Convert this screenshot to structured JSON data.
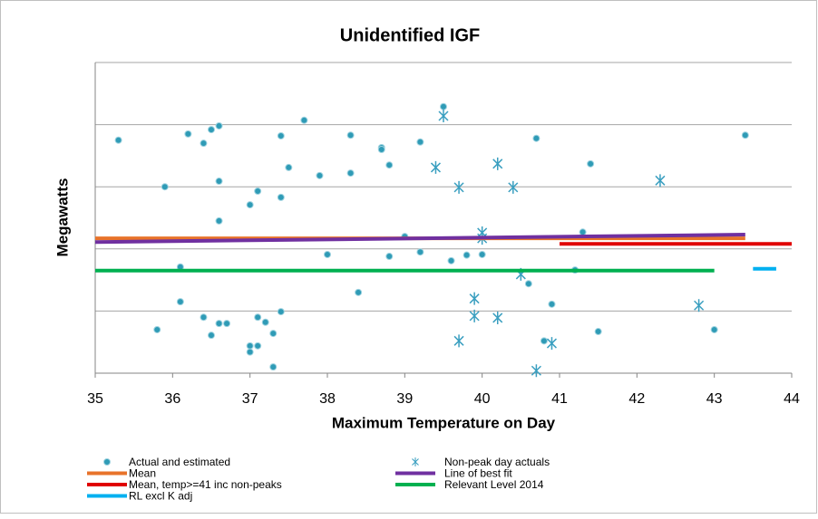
{
  "chart_data": {
    "type": "scatter",
    "title": "Unidentified IGF",
    "x_label": "Maximum Temperature on Day",
    "y_label": "Megawatts",
    "xlim": [
      35,
      44
    ],
    "xticks": [
      35,
      36,
      37,
      38,
      39,
      40,
      41,
      42,
      43,
      44
    ],
    "ylim": [
      0,
      5
    ],
    "yticks": [
      0,
      1,
      2,
      3,
      4,
      5
    ],
    "grid": true,
    "series": [
      {
        "name": "Actual and estimated",
        "type": "scatter",
        "marker": "dot",
        "color": "#2f9bb6",
        "x": [
          35.3,
          35.8,
          35.9,
          36.1,
          36.1,
          36.2,
          36.4,
          36.4,
          36.5,
          36.5,
          36.6,
          36.6,
          36.6,
          36.6,
          36.7,
          37.0,
          37.0,
          37.0,
          37.1,
          37.1,
          37.1,
          37.2,
          37.3,
          37.3,
          37.4,
          37.4,
          37.4,
          37.5,
          37.7,
          37.9,
          38.0,
          38.3,
          38.3,
          38.4,
          38.7,
          38.7,
          38.8,
          38.8,
          39.0,
          39.2,
          39.2,
          39.5,
          39.6,
          39.8,
          40.0,
          40.6,
          40.7,
          40.8,
          40.9,
          41.2,
          41.3,
          41.4,
          41.5,
          43.0,
          43.4
        ],
        "values": [
          3.75,
          0.7,
          3.0,
          1.71,
          1.15,
          3.85,
          3.7,
          0.9,
          3.92,
          0.61,
          3.98,
          3.09,
          2.45,
          0.8,
          0.8,
          2.71,
          0.44,
          0.34,
          2.93,
          0.9,
          0.44,
          0.82,
          0.64,
          0.1,
          3.82,
          2.83,
          0.99,
          3.31,
          4.07,
          3.18,
          1.91,
          3.83,
          3.22,
          1.3,
          3.63,
          3.6,
          3.35,
          1.88,
          2.2,
          3.72,
          1.95,
          4.29,
          1.81,
          1.9,
          1.91,
          1.44,
          3.78,
          0.52,
          1.11,
          1.66,
          2.27,
          3.37,
          0.67,
          0.7,
          3.83
        ]
      },
      {
        "name": "Non-peak day actuals",
        "type": "scatter",
        "marker": "star",
        "color": "#3a9fc0",
        "x": [
          39.5,
          39.4,
          39.7,
          40.0,
          40.0,
          40.2,
          40.4,
          39.9,
          39.9,
          40.2,
          39.7,
          40.5,
          40.7,
          40.9,
          42.3,
          42.8
        ],
        "values": [
          4.14,
          3.31,
          2.99,
          2.26,
          2.17,
          3.37,
          2.99,
          1.2,
          0.92,
          0.89,
          0.52,
          1.59,
          0.04,
          0.48,
          3.1,
          1.09
        ]
      },
      {
        "name": "Mean",
        "type": "line",
        "color": "#e8732a",
        "x": [
          35,
          43.4
        ],
        "values": [
          2.17,
          2.17
        ]
      },
      {
        "name": "Line of best fit",
        "type": "line",
        "color": "#7030a0",
        "x": [
          35,
          43.4
        ],
        "values": [
          2.11,
          2.23
        ]
      },
      {
        "name": "Mean, temp>=41 inc non-peaks",
        "type": "line",
        "color": "#e00000",
        "x": [
          41,
          44
        ],
        "values": [
          2.08,
          2.08
        ]
      },
      {
        "name": "Relevant Level 2014",
        "type": "line",
        "color": "#00b050",
        "x": [
          35,
          43
        ],
        "values": [
          1.65,
          1.65
        ]
      },
      {
        "name": "RL excl K adj",
        "type": "line",
        "color": "#00b0f0",
        "x": [
          43.5,
          43.8
        ],
        "values": [
          1.68,
          1.68
        ]
      }
    ]
  }
}
